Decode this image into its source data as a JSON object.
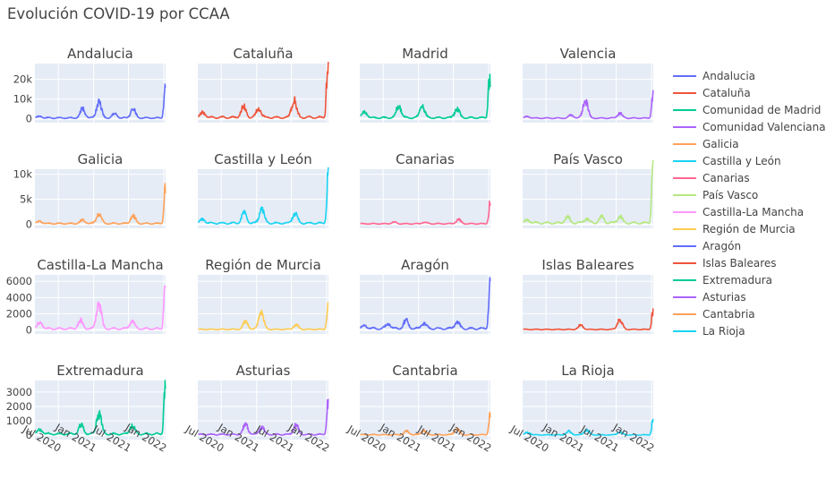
{
  "title": "Evolución COVID-19 por CCAA",
  "chart_data": {
    "type": "line",
    "title": "Evolución COVID-19 por CCAA",
    "x_range": [
      "2020-03-01",
      "2022-01-10"
    ],
    "x_ticks": [
      "Jul 2020",
      "Jan 2021",
      "Jul 2021",
      "Jan 2022"
    ],
    "x_tick_dates": [
      "2020-07-01",
      "2021-01-01",
      "2021-07-01",
      "2022-01-01"
    ],
    "grid": true,
    "legend_position": "right",
    "rows": [
      {
        "y_range": [
          -2000,
          28000
        ],
        "y_ticks": [
          0,
          10000,
          20000
        ],
        "y_tick_labels": [
          "0",
          "10k",
          "20k"
        ]
      },
      {
        "y_range": [
          -800,
          11000
        ],
        "y_ticks": [
          0,
          5000,
          10000
        ],
        "y_tick_labels": [
          "0",
          "5k",
          "10k"
        ]
      },
      {
        "y_range": [
          -500,
          6800
        ],
        "y_ticks": [
          0,
          2000,
          4000,
          6000
        ],
        "y_tick_labels": [
          "0",
          "2000",
          "4000",
          "6000"
        ]
      },
      {
        "y_range": [
          -300,
          3800
        ],
        "y_ticks": [
          0,
          1000,
          2000,
          3000
        ],
        "y_tick_labels": [
          "0",
          "1000",
          "2000",
          "3000"
        ]
      }
    ],
    "subplots": [
      {
        "title": "Andalucia",
        "series": "Andalucia",
        "color": "#636efa",
        "row": 0,
        "peaks": [
          {
            "date": "2020-03-28",
            "value": 800
          },
          {
            "date": "2020-11-05",
            "value": 4500
          },
          {
            "date": "2021-01-28",
            "value": 8000
          },
          {
            "date": "2021-04-20",
            "value": 2000
          },
          {
            "date": "2021-07-25",
            "value": 4500
          },
          {
            "date": "2022-01-08",
            "value": 16000
          }
        ]
      },
      {
        "title": "Cataluña",
        "series": "Cataluña",
        "color": "#EF553B",
        "row": 0,
        "peaks": [
          {
            "date": "2020-03-28",
            "value": 2500
          },
          {
            "date": "2020-10-25",
            "value": 5500
          },
          {
            "date": "2021-01-12",
            "value": 4500
          },
          {
            "date": "2021-07-15",
            "value": 9000
          },
          {
            "date": "2022-01-06",
            "value": 26000
          }
        ]
      },
      {
        "title": "Madrid",
        "series": "Comunidad de Madrid",
        "color": "#00cc96",
        "row": 0,
        "peaks": [
          {
            "date": "2020-03-26",
            "value": 3000
          },
          {
            "date": "2020-09-20",
            "value": 6000
          },
          {
            "date": "2021-01-20",
            "value": 6000
          },
          {
            "date": "2021-07-20",
            "value": 4500
          },
          {
            "date": "2022-01-05",
            "value": 20000
          }
        ]
      },
      {
        "title": "Valencia",
        "series": "Comunidad Valenciana",
        "color": "#ab63fa",
        "row": 0,
        "peaks": [
          {
            "date": "2020-03-28",
            "value": 800
          },
          {
            "date": "2020-11-10",
            "value": 1500
          },
          {
            "date": "2021-01-22",
            "value": 9000
          },
          {
            "date": "2021-07-20",
            "value": 2500
          },
          {
            "date": "2022-01-08",
            "value": 12000
          }
        ]
      },
      {
        "title": "Galicia",
        "series": "Galicia",
        "color": "#FFA15A",
        "row": 1,
        "peaks": [
          {
            "date": "2020-03-28",
            "value": 400
          },
          {
            "date": "2020-11-05",
            "value": 700
          },
          {
            "date": "2021-01-28",
            "value": 1800
          },
          {
            "date": "2021-07-25",
            "value": 1500
          },
          {
            "date": "2022-01-08",
            "value": 6500
          }
        ]
      },
      {
        "title": "Castilla y León",
        "series": "Castilla y León",
        "color": "#19d3f3",
        "row": 1,
        "peaks": [
          {
            "date": "2020-03-28",
            "value": 700
          },
          {
            "date": "2020-10-28",
            "value": 2000
          },
          {
            "date": "2021-01-28",
            "value": 2800
          },
          {
            "date": "2021-07-20",
            "value": 2000
          },
          {
            "date": "2022-01-08",
            "value": 9500
          }
        ]
      },
      {
        "title": "Canarias",
        "series": "Canarias",
        "color": "#FF6692",
        "row": 1,
        "peaks": [
          {
            "date": "2020-08-25",
            "value": 300
          },
          {
            "date": "2021-02-01",
            "value": 300
          },
          {
            "date": "2021-07-28",
            "value": 800
          },
          {
            "date": "2022-01-08",
            "value": 4500
          }
        ]
      },
      {
        "title": "País Vasco",
        "series": "País Vasco",
        "color": "#B6E880",
        "row": 1,
        "peaks": [
          {
            "date": "2020-03-28",
            "value": 600
          },
          {
            "date": "2020-10-20",
            "value": 1200
          },
          {
            "date": "2021-01-28",
            "value": 900
          },
          {
            "date": "2021-04-15",
            "value": 1200
          },
          {
            "date": "2021-07-20",
            "value": 1300
          },
          {
            "date": "2022-01-08",
            "value": 10800
          }
        ]
      },
      {
        "title": "Castilla-La Mancha",
        "series": "Castilla-La Mancha",
        "color": "#FF97FF",
        "row": 2,
        "peaks": [
          {
            "date": "2020-03-28",
            "value": 800
          },
          {
            "date": "2020-10-25",
            "value": 1000
          },
          {
            "date": "2021-01-28",
            "value": 3000
          },
          {
            "date": "2021-07-20",
            "value": 900
          },
          {
            "date": "2022-01-08",
            "value": 5900
          }
        ]
      },
      {
        "title": "Región de Murcia",
        "series": "Región de Murcia",
        "color": "#FECB52",
        "row": 2,
        "peaks": [
          {
            "date": "2020-11-05",
            "value": 1000
          },
          {
            "date": "2021-01-25",
            "value": 2200
          },
          {
            "date": "2021-07-25",
            "value": 600
          },
          {
            "date": "2022-01-08",
            "value": 2800
          }
        ]
      },
      {
        "title": "Aragón",
        "series": "Aragón",
        "color": "#636efa",
        "row": 2,
        "peaks": [
          {
            "date": "2020-03-28",
            "value": 400
          },
          {
            "date": "2020-07-28",
            "value": 600
          },
          {
            "date": "2020-10-28",
            "value": 1000
          },
          {
            "date": "2021-01-28",
            "value": 700
          },
          {
            "date": "2021-07-20",
            "value": 800
          },
          {
            "date": "2022-01-08",
            "value": 6600
          }
        ]
      },
      {
        "title": "Islas Baleares",
        "series": "Islas Baleares",
        "color": "#EF553B",
        "row": 2,
        "peaks": [
          {
            "date": "2020-12-28",
            "value": 500
          },
          {
            "date": "2021-07-20",
            "value": 1200
          },
          {
            "date": "2022-01-08",
            "value": 2300
          }
        ]
      },
      {
        "title": "Extremadura",
        "series": "Extremadura",
        "color": "#00cc96",
        "row": 3,
        "peaks": [
          {
            "date": "2020-03-28",
            "value": 300
          },
          {
            "date": "2020-10-28",
            "value": 600
          },
          {
            "date": "2021-01-28",
            "value": 1400
          },
          {
            "date": "2021-07-20",
            "value": 600
          },
          {
            "date": "2022-01-08",
            "value": 3600
          }
        ]
      },
      {
        "title": "Asturias",
        "series": "Asturias",
        "color": "#ab63fa",
        "row": 3,
        "peaks": [
          {
            "date": "2020-11-05",
            "value": 700
          },
          {
            "date": "2021-01-28",
            "value": 550
          },
          {
            "date": "2021-07-25",
            "value": 650
          },
          {
            "date": "2022-01-08",
            "value": 2200
          }
        ]
      },
      {
        "title": "Cantabria",
        "series": "Cantabria",
        "color": "#FFA15A",
        "row": 3,
        "peaks": [
          {
            "date": "2020-11-01",
            "value": 250
          },
          {
            "date": "2021-01-28",
            "value": 300
          },
          {
            "date": "2021-07-20",
            "value": 400
          },
          {
            "date": "2022-01-08",
            "value": 1400
          }
        ]
      },
      {
        "title": "La Rioja",
        "series": "La Rioja",
        "color": "#19d3f3",
        "row": 3,
        "peaks": [
          {
            "date": "2020-03-28",
            "value": 200
          },
          {
            "date": "2020-10-28",
            "value": 250
          },
          {
            "date": "2021-01-28",
            "value": 350
          },
          {
            "date": "2021-07-20",
            "value": 200
          },
          {
            "date": "2022-01-08",
            "value": 1000
          }
        ]
      }
    ],
    "legend": [
      {
        "name": "Andalucia",
        "color": "#636efa"
      },
      {
        "name": "Cataluña",
        "color": "#EF553B"
      },
      {
        "name": "Comunidad de Madrid",
        "color": "#00cc96"
      },
      {
        "name": "Comunidad Valenciana",
        "color": "#ab63fa"
      },
      {
        "name": "Galicia",
        "color": "#FFA15A"
      },
      {
        "name": "Castilla y León",
        "color": "#19d3f3"
      },
      {
        "name": "Canarias",
        "color": "#FF6692"
      },
      {
        "name": "País Vasco",
        "color": "#B6E880"
      },
      {
        "name": "Castilla-La Mancha",
        "color": "#FF97FF"
      },
      {
        "name": "Región de Murcia",
        "color": "#FECB52"
      },
      {
        "name": "Aragón",
        "color": "#636efa"
      },
      {
        "name": "Islas Baleares",
        "color": "#EF553B"
      },
      {
        "name": "Extremadura",
        "color": "#00cc96"
      },
      {
        "name": "Asturias",
        "color": "#ab63fa"
      },
      {
        "name": "Cantabria",
        "color": "#FFA15A"
      },
      {
        "name": "La Rioja",
        "color": "#19d3f3"
      }
    ]
  }
}
